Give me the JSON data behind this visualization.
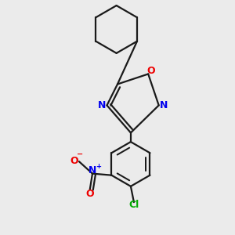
{
  "bg_color": "#ebebeb",
  "bond_color": "#1a1a1a",
  "N_color": "#0000ee",
  "O_color": "#ee0000",
  "Cl_color": "#00aa00",
  "bond_lw": 1.6,
  "fig_w": 3.0,
  "fig_h": 3.0,
  "dpi": 100,
  "xlim": [
    -2.5,
    2.5
  ],
  "ylim": [
    -4.2,
    3.2
  ]
}
